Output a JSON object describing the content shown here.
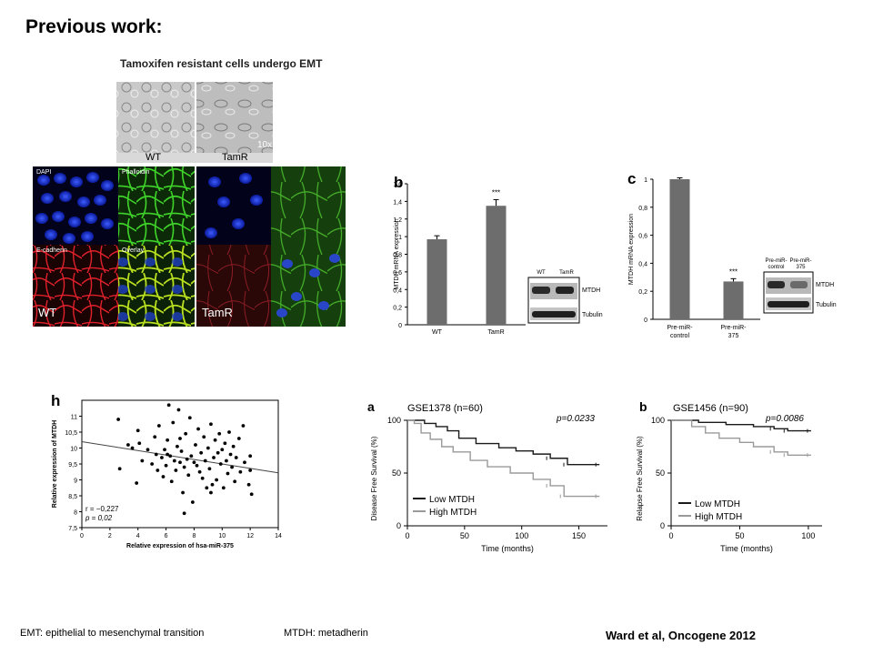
{
  "slide": {
    "title": "Previous work:",
    "footnote_emt": "EMT: epithelial to mesenchymal transition",
    "footnote_mtdh": "MTDH: metadherin",
    "citation": "Ward et al, Oncogene 2012"
  },
  "emt_panel": {
    "title": "Tamoxifen resistant cells undergo EMT",
    "phase_labels": [
      "WT",
      "TamR"
    ],
    "magnification": "10x",
    "channel_labels": [
      "DAPI",
      "Phalloidin",
      "E-cadherin",
      "Overlay"
    ],
    "wt_label": "WT",
    "tamr_label": "TamR"
  },
  "chart_data": [
    {
      "id": "b",
      "type": "bar",
      "panel_letter": "b",
      "categories": [
        "WT",
        "TamR"
      ],
      "values": [
        0.97,
        1.35
      ],
      "errors": [
        0.04,
        0.07
      ],
      "significance": [
        "",
        "***"
      ],
      "ylabel": "MTDH mRNA expression",
      "ylim": [
        0,
        1.6
      ],
      "yticks": [
        "0",
        "0,2",
        "0,4",
        "0,6",
        "0,8",
        "1",
        "1,2",
        "1,4",
        "1,6"
      ],
      "blot_lanes": [
        "WT",
        "TamR"
      ],
      "blot_rows": [
        "MTDH",
        "Tubulin"
      ]
    },
    {
      "id": "c",
      "type": "bar",
      "panel_letter": "c",
      "categories": [
        "Pre-miR-control",
        "Pre-miR-375"
      ],
      "category_lines": [
        [
          "Pre-miR-",
          "control"
        ],
        [
          "Pre-miR-",
          "375"
        ]
      ],
      "values": [
        1.0,
        0.27
      ],
      "errors": [
        0.01,
        0.02
      ],
      "significance": [
        "",
        "***"
      ],
      "ylabel": "MTDH mRNA expression",
      "ylim": [
        0,
        1
      ],
      "yticks": [
        "0",
        "0,2",
        "0,4",
        "0,6",
        "0,8",
        "1"
      ],
      "blot_lanes": [
        [
          "Pre-miR-",
          "control"
        ],
        [
          "Pre-miR-",
          "375"
        ]
      ],
      "blot_rows": [
        "MTDH",
        "Tubulin"
      ]
    },
    {
      "id": "h",
      "type": "scatter",
      "panel_letter": "h",
      "xlabel": "Relative expression of hsa-miR-375",
      "ylabel": "Relative expression of MTDH",
      "xlim": [
        0,
        14
      ],
      "ylim": [
        7.5,
        11.5
      ],
      "xticks": [
        "0",
        "2",
        "4",
        "6",
        "8",
        "10",
        "12",
        "14"
      ],
      "yticks": [
        "7,5",
        "8",
        "8,5",
        "9",
        "9,5",
        "10",
        "10,5",
        "11"
      ],
      "trend": [
        [
          0,
          10.2
        ],
        [
          14,
          9.22
        ]
      ],
      "annotation_r": "r = −0,227",
      "annotation_p": "p = 0,02",
      "points": [
        [
          2.6,
          10.9
        ],
        [
          2.7,
          9.35
        ],
        [
          3.3,
          10.1
        ],
        [
          3.6,
          10.0
        ],
        [
          3.9,
          8.9
        ],
        [
          4.0,
          10.55
        ],
        [
          4.1,
          10.15
        ],
        [
          4.3,
          9.6
        ],
        [
          4.7,
          9.95
        ],
        [
          5.0,
          9.5
        ],
        [
          5.2,
          10.35
        ],
        [
          5.3,
          9.8
        ],
        [
          5.4,
          9.3
        ],
        [
          5.5,
          10.7
        ],
        [
          5.7,
          9.7
        ],
        [
          5.8,
          9.1
        ],
        [
          5.9,
          9.95
        ],
        [
          6.0,
          9.45
        ],
        [
          6.1,
          10.25
        ],
        [
          6.2,
          11.35
        ],
        [
          6.3,
          9.75
        ],
        [
          6.4,
          8.95
        ],
        [
          6.5,
          10.8
        ],
        [
          6.6,
          9.6
        ],
        [
          6.7,
          9.3
        ],
        [
          6.8,
          10.05
        ],
        [
          6.9,
          11.2
        ],
        [
          7.0,
          9.55
        ],
        [
          7.1,
          9.9
        ],
        [
          7.2,
          8.6
        ],
        [
          7.3,
          9.4
        ],
        [
          7.4,
          10.45
        ],
        [
          7.5,
          9.65
        ],
        [
          7.6,
          9.15
        ],
        [
          7.7,
          10.95
        ],
        [
          7.8,
          9.75
        ],
        [
          7.9,
          8.3
        ],
        [
          8.0,
          9.55
        ],
        [
          8.1,
          10.1
        ],
        [
          8.2,
          9.45
        ],
        [
          8.3,
          10.6
        ],
        [
          8.4,
          9.25
        ],
        [
          8.5,
          9.85
        ],
        [
          8.6,
          9.05
        ],
        [
          8.7,
          10.35
        ],
        [
          8.8,
          9.6
        ],
        [
          8.9,
          8.75
        ],
        [
          9.0,
          10.0
        ],
        [
          9.1,
          9.35
        ],
        [
          9.2,
          10.75
        ],
        [
          9.3,
          8.85
        ],
        [
          9.4,
          9.7
        ],
        [
          9.5,
          10.25
        ],
        [
          9.6,
          9.0
        ],
        [
          9.7,
          9.85
        ],
        [
          9.8,
          10.45
        ],
        [
          9.9,
          9.5
        ],
        [
          10.0,
          9.95
        ],
        [
          10.1,
          8.75
        ],
        [
          10.2,
          10.15
        ],
        [
          10.3,
          9.6
        ],
        [
          10.4,
          9.2
        ],
        [
          10.5,
          10.5
        ],
        [
          10.6,
          9.8
        ],
        [
          10.7,
          9.4
        ],
        [
          10.8,
          10.05
        ],
        [
          10.9,
          8.95
        ],
        [
          11.0,
          9.7
        ],
        [
          11.2,
          10.3
        ],
        [
          11.3,
          9.25
        ],
        [
          11.5,
          10.7
        ],
        [
          11.6,
          9.55
        ],
        [
          11.9,
          8.85
        ],
        [
          12.0,
          9.3
        ],
        [
          12.1,
          8.55
        ],
        [
          12.0,
          9.75
        ],
        [
          7.3,
          7.95
        ],
        [
          9.2,
          8.6
        ],
        [
          6.1,
          9.8
        ],
        [
          7.0,
          10.3
        ]
      ]
    },
    {
      "id": "a",
      "type": "line",
      "panel_letter": "a",
      "title": "GSE1378 (n=60)",
      "pvalue": "p=0.0233",
      "xlabel": "Time (months)",
      "ylabel": "Disease Free Survival (%)",
      "xlim": [
        0,
        175
      ],
      "ylim": [
        0,
        100
      ],
      "xticks": [
        "0",
        "50",
        "100",
        "150"
      ],
      "yticks": [
        "0",
        "50",
        "100"
      ],
      "legend_position": "bottom-left",
      "series": [
        {
          "name": "Low MTDH",
          "color": "#1a1a1a",
          "steps": [
            [
              0,
              100
            ],
            [
              8,
              100
            ],
            [
              15,
              97
            ],
            [
              25,
              94
            ],
            [
              35,
              90
            ],
            [
              45,
              83
            ],
            [
              60,
              78
            ],
            [
              80,
              74
            ],
            [
              95,
              71
            ],
            [
              110,
              68
            ],
            [
              125,
              64
            ],
            [
              140,
              58
            ],
            [
              168,
              58
            ]
          ]
        },
        {
          "name": "High MTDH",
          "color": "#9a9a9a",
          "steps": [
            [
              0,
              100
            ],
            [
              6,
              97
            ],
            [
              12,
              88
            ],
            [
              20,
              82
            ],
            [
              30,
              75
            ],
            [
              40,
              70
            ],
            [
              55,
              62
            ],
            [
              70,
              56
            ],
            [
              90,
              50
            ],
            [
              110,
              44
            ],
            [
              125,
              38
            ],
            [
              137,
              28
            ],
            [
              168,
              28
            ]
          ]
        }
      ]
    },
    {
      "id": "b2",
      "type": "line",
      "panel_letter": "b",
      "title": "GSE1456 (n=90)",
      "pvalue": "p=0.0086",
      "xlabel": "Time (months)",
      "ylabel": "Relapse Free Survival (%)",
      "xlim": [
        0,
        110
      ],
      "ylim": [
        0,
        100
      ],
      "xticks": [
        "0",
        "50",
        "100"
      ],
      "yticks": [
        "0",
        "50",
        "100"
      ],
      "legend_position": "bottom-left",
      "series": [
        {
          "name": "Low MTDH",
          "color": "#1a1a1a",
          "steps": [
            [
              0,
              100
            ],
            [
              20,
              98
            ],
            [
              40,
              96
            ],
            [
              60,
              94
            ],
            [
              75,
              92
            ],
            [
              85,
              90
            ],
            [
              102,
              90
            ]
          ]
        },
        {
          "name": "High MTDH",
          "color": "#9a9a9a",
          "steps": [
            [
              0,
              100
            ],
            [
              15,
              94
            ],
            [
              25,
              88
            ],
            [
              35,
              83
            ],
            [
              50,
              79
            ],
            [
              60,
              75
            ],
            [
              75,
              70
            ],
            [
              85,
              67
            ],
            [
              102,
              67
            ]
          ]
        }
      ]
    }
  ]
}
